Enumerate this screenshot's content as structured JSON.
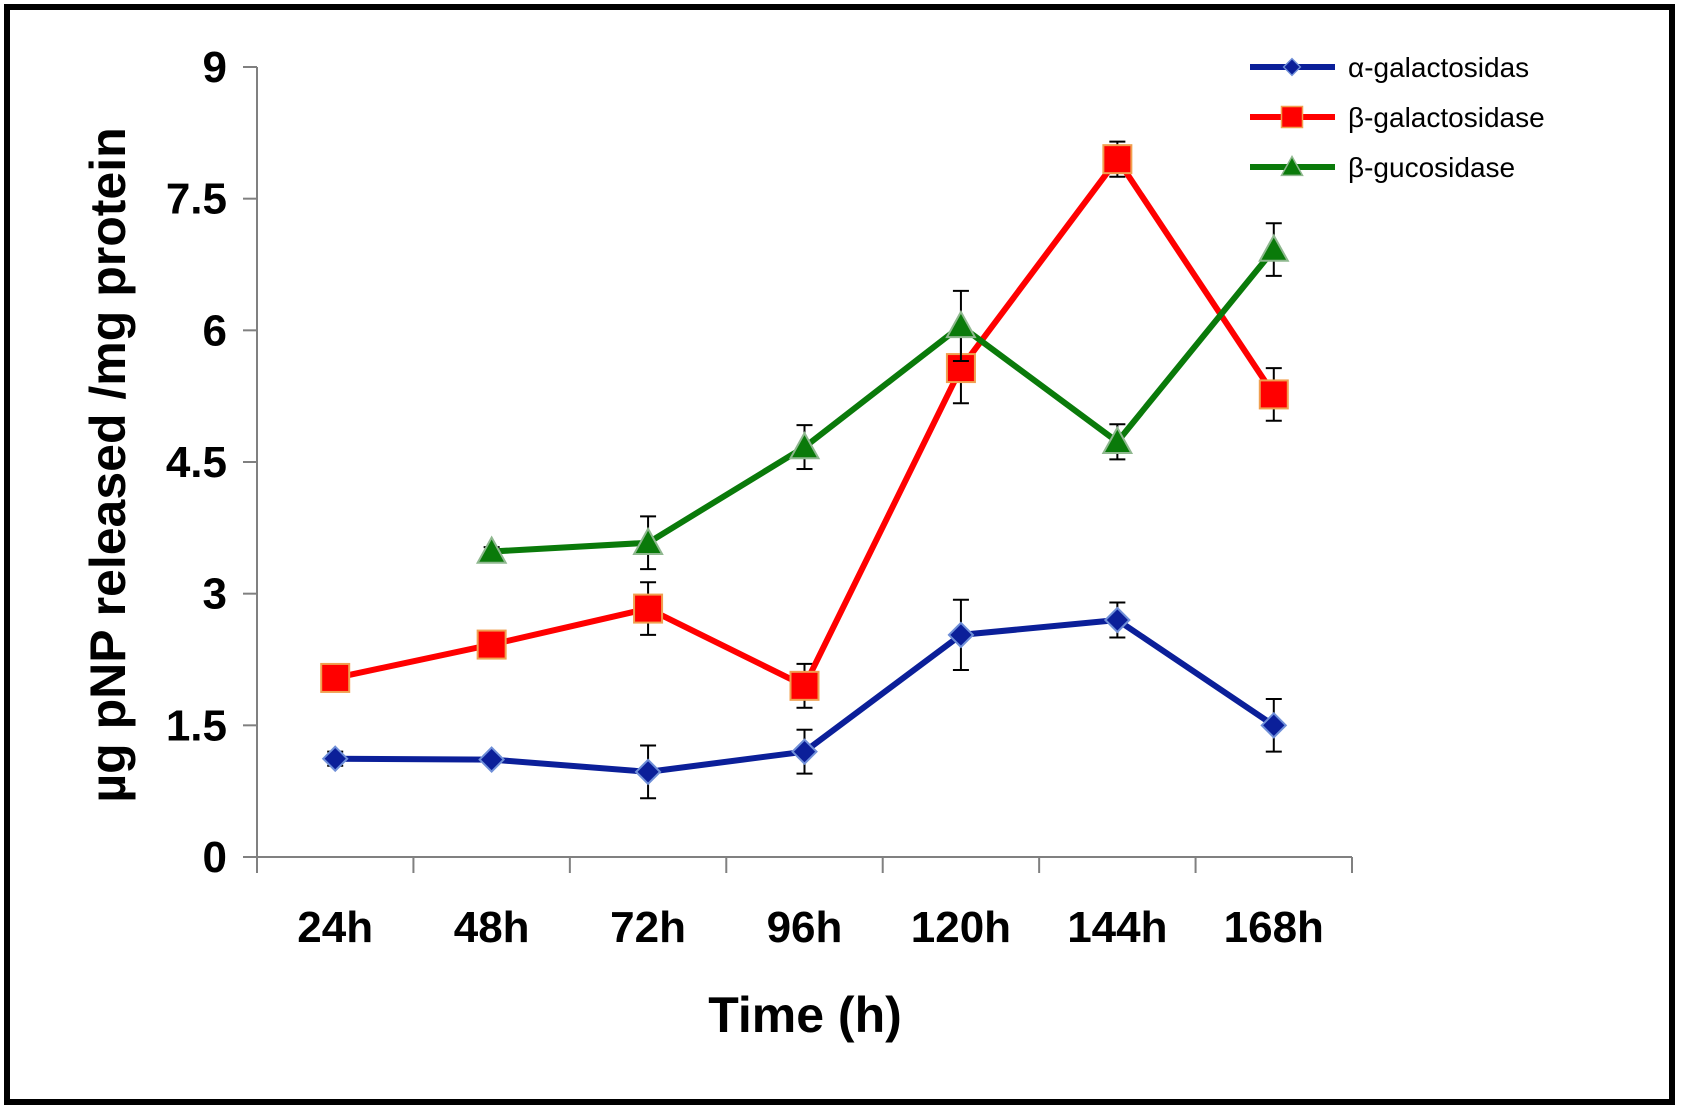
{
  "chart_data": {
    "type": "line",
    "title": "",
    "xlabel": "Time (h)",
    "ylabel": "µg pNP released /mg protein",
    "categories": [
      "24h",
      "48h",
      "72h",
      "96h",
      "120h",
      "144h",
      "168h"
    ],
    "ylim": [
      0,
      9
    ],
    "yticks": [
      "0",
      "1.5",
      "3",
      "4.5",
      "6",
      "7.5",
      "9"
    ],
    "ytick_values": [
      0,
      1.5,
      3,
      4.5,
      6,
      7.5,
      9
    ],
    "grid": false,
    "legend_position": "top-right",
    "series": [
      {
        "name": "α-galactosidas",
        "color": "#0b1f99",
        "marker": "diamond",
        "values": [
          1.12,
          1.11,
          0.97,
          1.2,
          2.53,
          2.7,
          1.5
        ],
        "errors": [
          0.08,
          0.05,
          0.3,
          0.25,
          0.4,
          0.2,
          0.3
        ]
      },
      {
        "name": "β-galactosidase",
        "color": "#ff0000",
        "marker": "square",
        "values": [
          2.04,
          2.42,
          2.83,
          1.95,
          5.57,
          7.95,
          5.27
        ],
        "errors": [
          0.05,
          0.05,
          0.3,
          0.25,
          0.4,
          0.2,
          0.3
        ]
      },
      {
        "name": "β-gucosidase",
        "color": "#0a7a0a",
        "marker": "triangle",
        "values": [
          null,
          3.48,
          3.58,
          4.67,
          6.05,
          4.73,
          6.92
        ],
        "errors": [
          null,
          0.05,
          0.3,
          0.25,
          0.4,
          0.2,
          0.3
        ]
      }
    ]
  }
}
